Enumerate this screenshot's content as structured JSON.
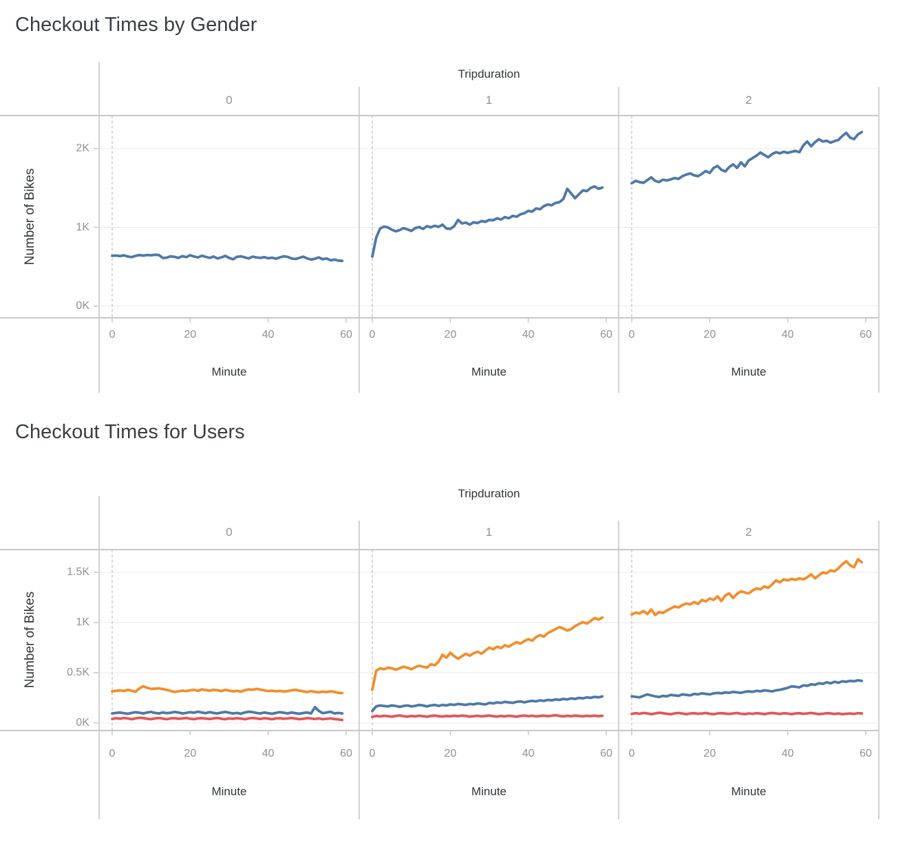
{
  "chart_data": [
    {
      "type": "line",
      "title": "Checkout Times by Gender",
      "facet_title": "Tripduration",
      "facet_labels": [
        "0",
        "1",
        "2"
      ],
      "x": {
        "title": "Minute",
        "ticks": [
          "0",
          "20",
          "40",
          "60"
        ],
        "tick_values": [
          0,
          20,
          40,
          60
        ],
        "range": [
          0,
          60
        ],
        "x_start": 0,
        "x_step": 1
      },
      "y": {
        "title": "Number of Bikes",
        "ticks": [
          "0K",
          "1K",
          "2K"
        ],
        "tick_values": [
          0,
          1000,
          2000
        ],
        "range": [
          0,
          2400
        ],
        "grid": true
      },
      "zero_reference_line": true,
      "panels": [
        {
          "facet_value": "0",
          "series": [
            {
              "name": "blue",
              "color": "#4e79a7",
              "values": [
                638,
                642,
                635,
                645,
                630,
                622,
                638,
                648,
                641,
                650,
                645,
                652,
                648,
                611,
                615,
                632,
                625,
                612,
                635,
                622,
                645,
                630,
                618,
                640,
                625,
                612,
                630,
                605,
                618,
                638,
                612,
                595,
                625,
                632,
                618,
                605,
                628,
                618,
                612,
                622,
                608,
                615,
                602,
                618,
                632,
                625,
                605,
                598,
                612,
                628,
                605,
                592,
                602,
                618,
                595,
                605,
                582,
                590,
                578,
                575
              ]
            }
          ]
        },
        {
          "facet_value": "1",
          "series": [
            {
              "name": "blue",
              "color": "#4e79a7",
              "values": [
                630,
                870,
                985,
                1010,
                1000,
                970,
                950,
                965,
                990,
                975,
                955,
                990,
                1005,
                980,
                1015,
                1000,
                1020,
                1005,
                1035,
                985,
                980,
                1015,
                1095,
                1050,
                1060,
                1035,
                1065,
                1055,
                1080,
                1070,
                1095,
                1090,
                1115,
                1100,
                1130,
                1115,
                1145,
                1135,
                1165,
                1180,
                1210,
                1200,
                1240,
                1230,
                1270,
                1290,
                1280,
                1310,
                1320,
                1360,
                1490,
                1430,
                1370,
                1420,
                1470,
                1460,
                1500,
                1520,
                1490,
                1505
              ]
            }
          ]
        },
        {
          "facet_value": "2",
          "series": [
            {
              "name": "blue",
              "color": "#4e79a7",
              "values": [
                1560,
                1590,
                1575,
                1565,
                1600,
                1635,
                1590,
                1575,
                1605,
                1595,
                1610,
                1625,
                1615,
                1650,
                1670,
                1685,
                1660,
                1650,
                1680,
                1715,
                1690,
                1755,
                1780,
                1730,
                1710,
                1765,
                1800,
                1755,
                1825,
                1775,
                1850,
                1880,
                1910,
                1950,
                1920,
                1890,
                1930,
                1955,
                1940,
                1960,
                1945,
                1960,
                1970,
                1955,
                2040,
                2090,
                2030,
                2080,
                2120,
                2090,
                2100,
                2075,
                2095,
                2110,
                2160,
                2200,
                2140,
                2120,
                2180,
                2210
              ]
            }
          ]
        }
      ]
    },
    {
      "type": "line",
      "title": "Checkout Times for Users",
      "facet_title": "Tripduration",
      "facet_labels": [
        "0",
        "1",
        "2"
      ],
      "x": {
        "title": "Minute",
        "ticks": [
          "0",
          "20",
          "40",
          "60"
        ],
        "tick_values": [
          0,
          20,
          40,
          60
        ],
        "range": [
          0,
          60
        ],
        "x_start": 0,
        "x_step": 1
      },
      "y": {
        "title": "Number of Bikes",
        "ticks": [
          "0K",
          "0.5K",
          "1K",
          "1.5K"
        ],
        "tick_values": [
          0,
          500,
          1000,
          1500
        ],
        "range": [
          0,
          1725
        ],
        "grid": true
      },
      "zero_reference_line": true,
      "panels": [
        {
          "facet_value": "0",
          "series": [
            {
              "name": "red",
              "color": "#e15759",
              "values": [
                40,
                48,
                42,
                50,
                45,
                38,
                45,
                52,
                48,
                42,
                38,
                45,
                50,
                44,
                38,
                45,
                48,
                42,
                45,
                50,
                42,
                38,
                45,
                48,
                44,
                40,
                45,
                50,
                42,
                38,
                45,
                42,
                48,
                44,
                38,
                45,
                50,
                45,
                40,
                48,
                44,
                38,
                45,
                48,
                42,
                45,
                50,
                44,
                38,
                42,
                48,
                45,
                40,
                45,
                38,
                42,
                45,
                40,
                35,
                30
              ]
            },
            {
              "name": "orange",
              "color": "#f28e2b",
              "values": [
                315,
                320,
                325,
                318,
                330,
                322,
                310,
                345,
                365,
                350,
                340,
                342,
                345,
                338,
                330,
                320,
                308,
                315,
                322,
                318,
                325,
                330,
                320,
                335,
                328,
                322,
                330,
                325,
                318,
                330,
                322,
                315,
                320,
                312,
                325,
                335,
                330,
                340,
                332,
                325,
                318,
                322,
                315,
                320,
                312,
                318,
                325,
                330,
                322,
                315,
                308,
                318,
                310,
                305,
                312,
                308,
                315,
                310,
                300,
                298
              ]
            },
            {
              "name": "blue",
              "color": "#4e79a7",
              "values": [
                95,
                100,
                105,
                98,
                92,
                100,
                108,
                102,
                95,
                105,
                110,
                100,
                95,
                105,
                98,
                102,
                110,
                105,
                95,
                100,
                108,
                102,
                112,
                105,
                98,
                108,
                100,
                95,
                105,
                110,
                102,
                95,
                100,
                92,
                105,
                112,
                108,
                100,
                95,
                105,
                98,
                92,
                100,
                108,
                102,
                95,
                105,
                98,
                92,
                100,
                105,
                95,
                158,
                120,
                98,
                105,
                112,
                95,
                100,
                95
              ]
            }
          ]
        },
        {
          "facet_value": "1",
          "series": [
            {
              "name": "red",
              "color": "#e15759",
              "values": [
                60,
                70,
                65,
                72,
                68,
                62,
                70,
                75,
                68,
                64,
                70,
                66,
                72,
                68,
                62,
                70,
                74,
                68,
                64,
                70,
                66,
                72,
                68,
                74,
                70,
                64,
                68,
                72,
                66,
                70,
                74,
                68,
                64,
                70,
                66,
                72,
                68,
                62,
                70,
                74,
                68,
                72,
                66,
                70,
                74,
                68,
                72,
                78,
                70,
                66,
                72,
                68,
                74,
                70,
                66,
                72,
                68,
                74,
                68,
                72
              ]
            },
            {
              "name": "orange",
              "color": "#f28e2b",
              "values": [
                330,
                520,
                545,
                535,
                550,
                545,
                530,
                545,
                560,
                550,
                535,
                555,
                570,
                560,
                550,
                585,
                575,
                610,
                680,
                650,
                700,
                665,
                640,
                665,
                690,
                670,
                695,
                710,
                690,
                720,
                750,
                735,
                760,
                745,
                775,
                760,
                785,
                805,
                790,
                815,
                835,
                820,
                855,
                875,
                860,
                895,
                915,
                935,
                955,
                940,
                920,
                935,
                965,
                985,
                1005,
                990,
                1015,
                1045,
                1030,
                1050
              ]
            },
            {
              "name": "blue",
              "color": "#4e79a7",
              "values": [
                120,
                165,
                175,
                170,
                165,
                175,
                170,
                160,
                170,
                175,
                165,
                170,
                180,
                175,
                165,
                175,
                180,
                170,
                180,
                175,
                185,
                180,
                190,
                185,
                180,
                190,
                185,
                195,
                190,
                185,
                200,
                195,
                205,
                200,
                210,
                205,
                200,
                210,
                215,
                205,
                215,
                220,
                215,
                225,
                220,
                230,
                225,
                235,
                230,
                240,
                235,
                245,
                240,
                250,
                245,
                255,
                250,
                260,
                255,
                265
              ]
            }
          ]
        },
        {
          "facet_value": "2",
          "series": [
            {
              "name": "red",
              "color": "#e15759",
              "values": [
                90,
                98,
                92,
                100,
                95,
                88,
                95,
                102,
                98,
                92,
                88,
                95,
                100,
                94,
                88,
                95,
                98,
                92,
                95,
                100,
                92,
                88,
                95,
                98,
                94,
                90,
                95,
                100,
                92,
                88,
                95,
                92,
                98,
                94,
                88,
                95,
                100,
                95,
                90,
                98,
                94,
                88,
                95,
                98,
                92,
                95,
                100,
                94,
                88,
                92,
                98,
                95,
                90,
                95,
                88,
                92,
                95,
                90,
                98,
                95
              ]
            },
            {
              "name": "orange",
              "color": "#f28e2b",
              "values": [
                1080,
                1100,
                1090,
                1115,
                1085,
                1130,
                1075,
                1105,
                1095,
                1120,
                1140,
                1160,
                1150,
                1175,
                1190,
                1180,
                1205,
                1185,
                1225,
                1210,
                1240,
                1225,
                1260,
                1215,
                1270,
                1290,
                1245,
                1285,
                1310,
                1300,
                1290,
                1320,
                1340,
                1330,
                1360,
                1345,
                1380,
                1420,
                1400,
                1430,
                1420,
                1435,
                1425,
                1440,
                1430,
                1450,
                1480,
                1440,
                1470,
                1500,
                1490,
                1520,
                1510,
                1540,
                1580,
                1610,
                1570,
                1550,
                1630,
                1600
              ]
            },
            {
              "name": "blue",
              "color": "#4e79a7",
              "values": [
                265,
                260,
                255,
                270,
                285,
                275,
                265,
                258,
                270,
                265,
                280,
                275,
                270,
                285,
                280,
                275,
                290,
                285,
                295,
                290,
                285,
                295,
                300,
                295,
                305,
                300,
                310,
                305,
                300,
                310,
                315,
                310,
                320,
                315,
                325,
                320,
                315,
                325,
                330,
                340,
                350,
                365,
                360,
                355,
                375,
                370,
                385,
                380,
                395,
                390,
                405,
                395,
                410,
                400,
                415,
                410,
                420,
                415,
                425,
                420
              ]
            }
          ]
        }
      ]
    }
  ],
  "style": {
    "border_color": "#c7c7c7",
    "grid_color": "#e9e9e9",
    "dashed_line_color": "#c6c6c6",
    "tick_color": "#c7c7c7"
  }
}
